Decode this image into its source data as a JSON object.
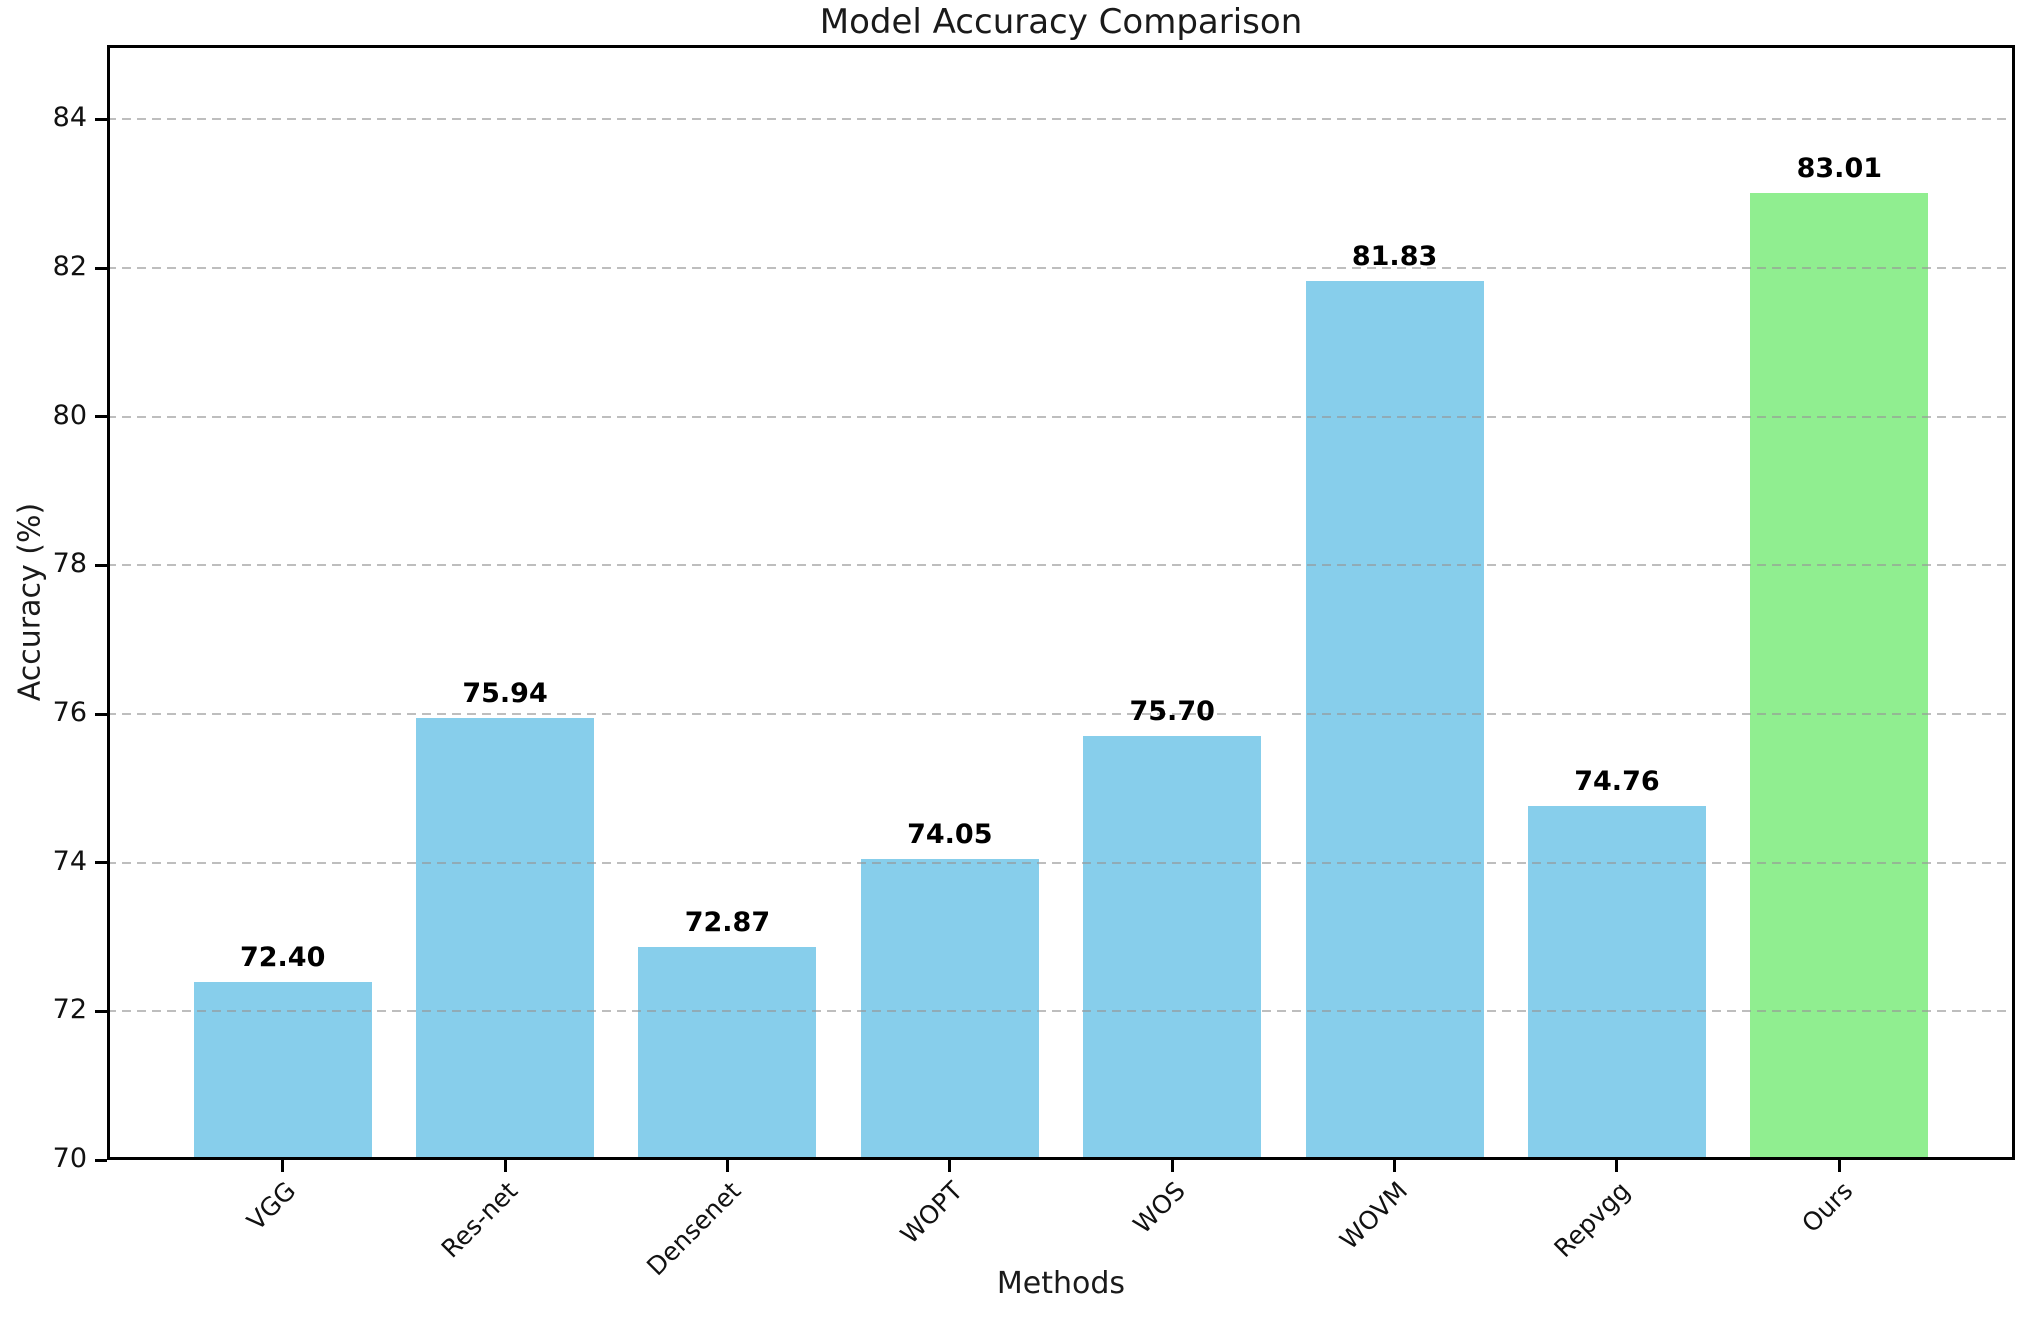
{
  "chart_data": {
    "type": "bar",
    "title": "Model Accuracy Comparison",
    "xlabel": "Methods",
    "ylabel": "Accuracy (%)",
    "categories": [
      "VGG",
      "Res-net",
      "Densenet",
      "WOPT",
      "WOS",
      "WOVM",
      "Repvgg",
      "Ours"
    ],
    "values": [
      72.4,
      75.94,
      72.87,
      74.05,
      75.7,
      81.83,
      74.76,
      83.01
    ],
    "value_labels": [
      "72.40",
      "75.94",
      "72.87",
      "74.05",
      "75.70",
      "81.83",
      "74.76",
      "83.01"
    ],
    "ylim": [
      70,
      85
    ],
    "yticks": [
      70,
      72,
      74,
      76,
      78,
      80,
      82,
      84
    ],
    "grid": "horizontal dashed, drawn over bars",
    "legend": "none",
    "bar_colors": [
      "#87CEEB",
      "#87CEEB",
      "#87CEEB",
      "#87CEEB",
      "#87CEEB",
      "#87CEEB",
      "#87CEEB",
      "#90EE90"
    ],
    "highlight_index": 7,
    "colors": {
      "default_bar": "#87CEEB",
      "highlight_bar": "#90EE90",
      "grid": "#969696",
      "spine": "#000000",
      "background": "#ffffff"
    }
  }
}
